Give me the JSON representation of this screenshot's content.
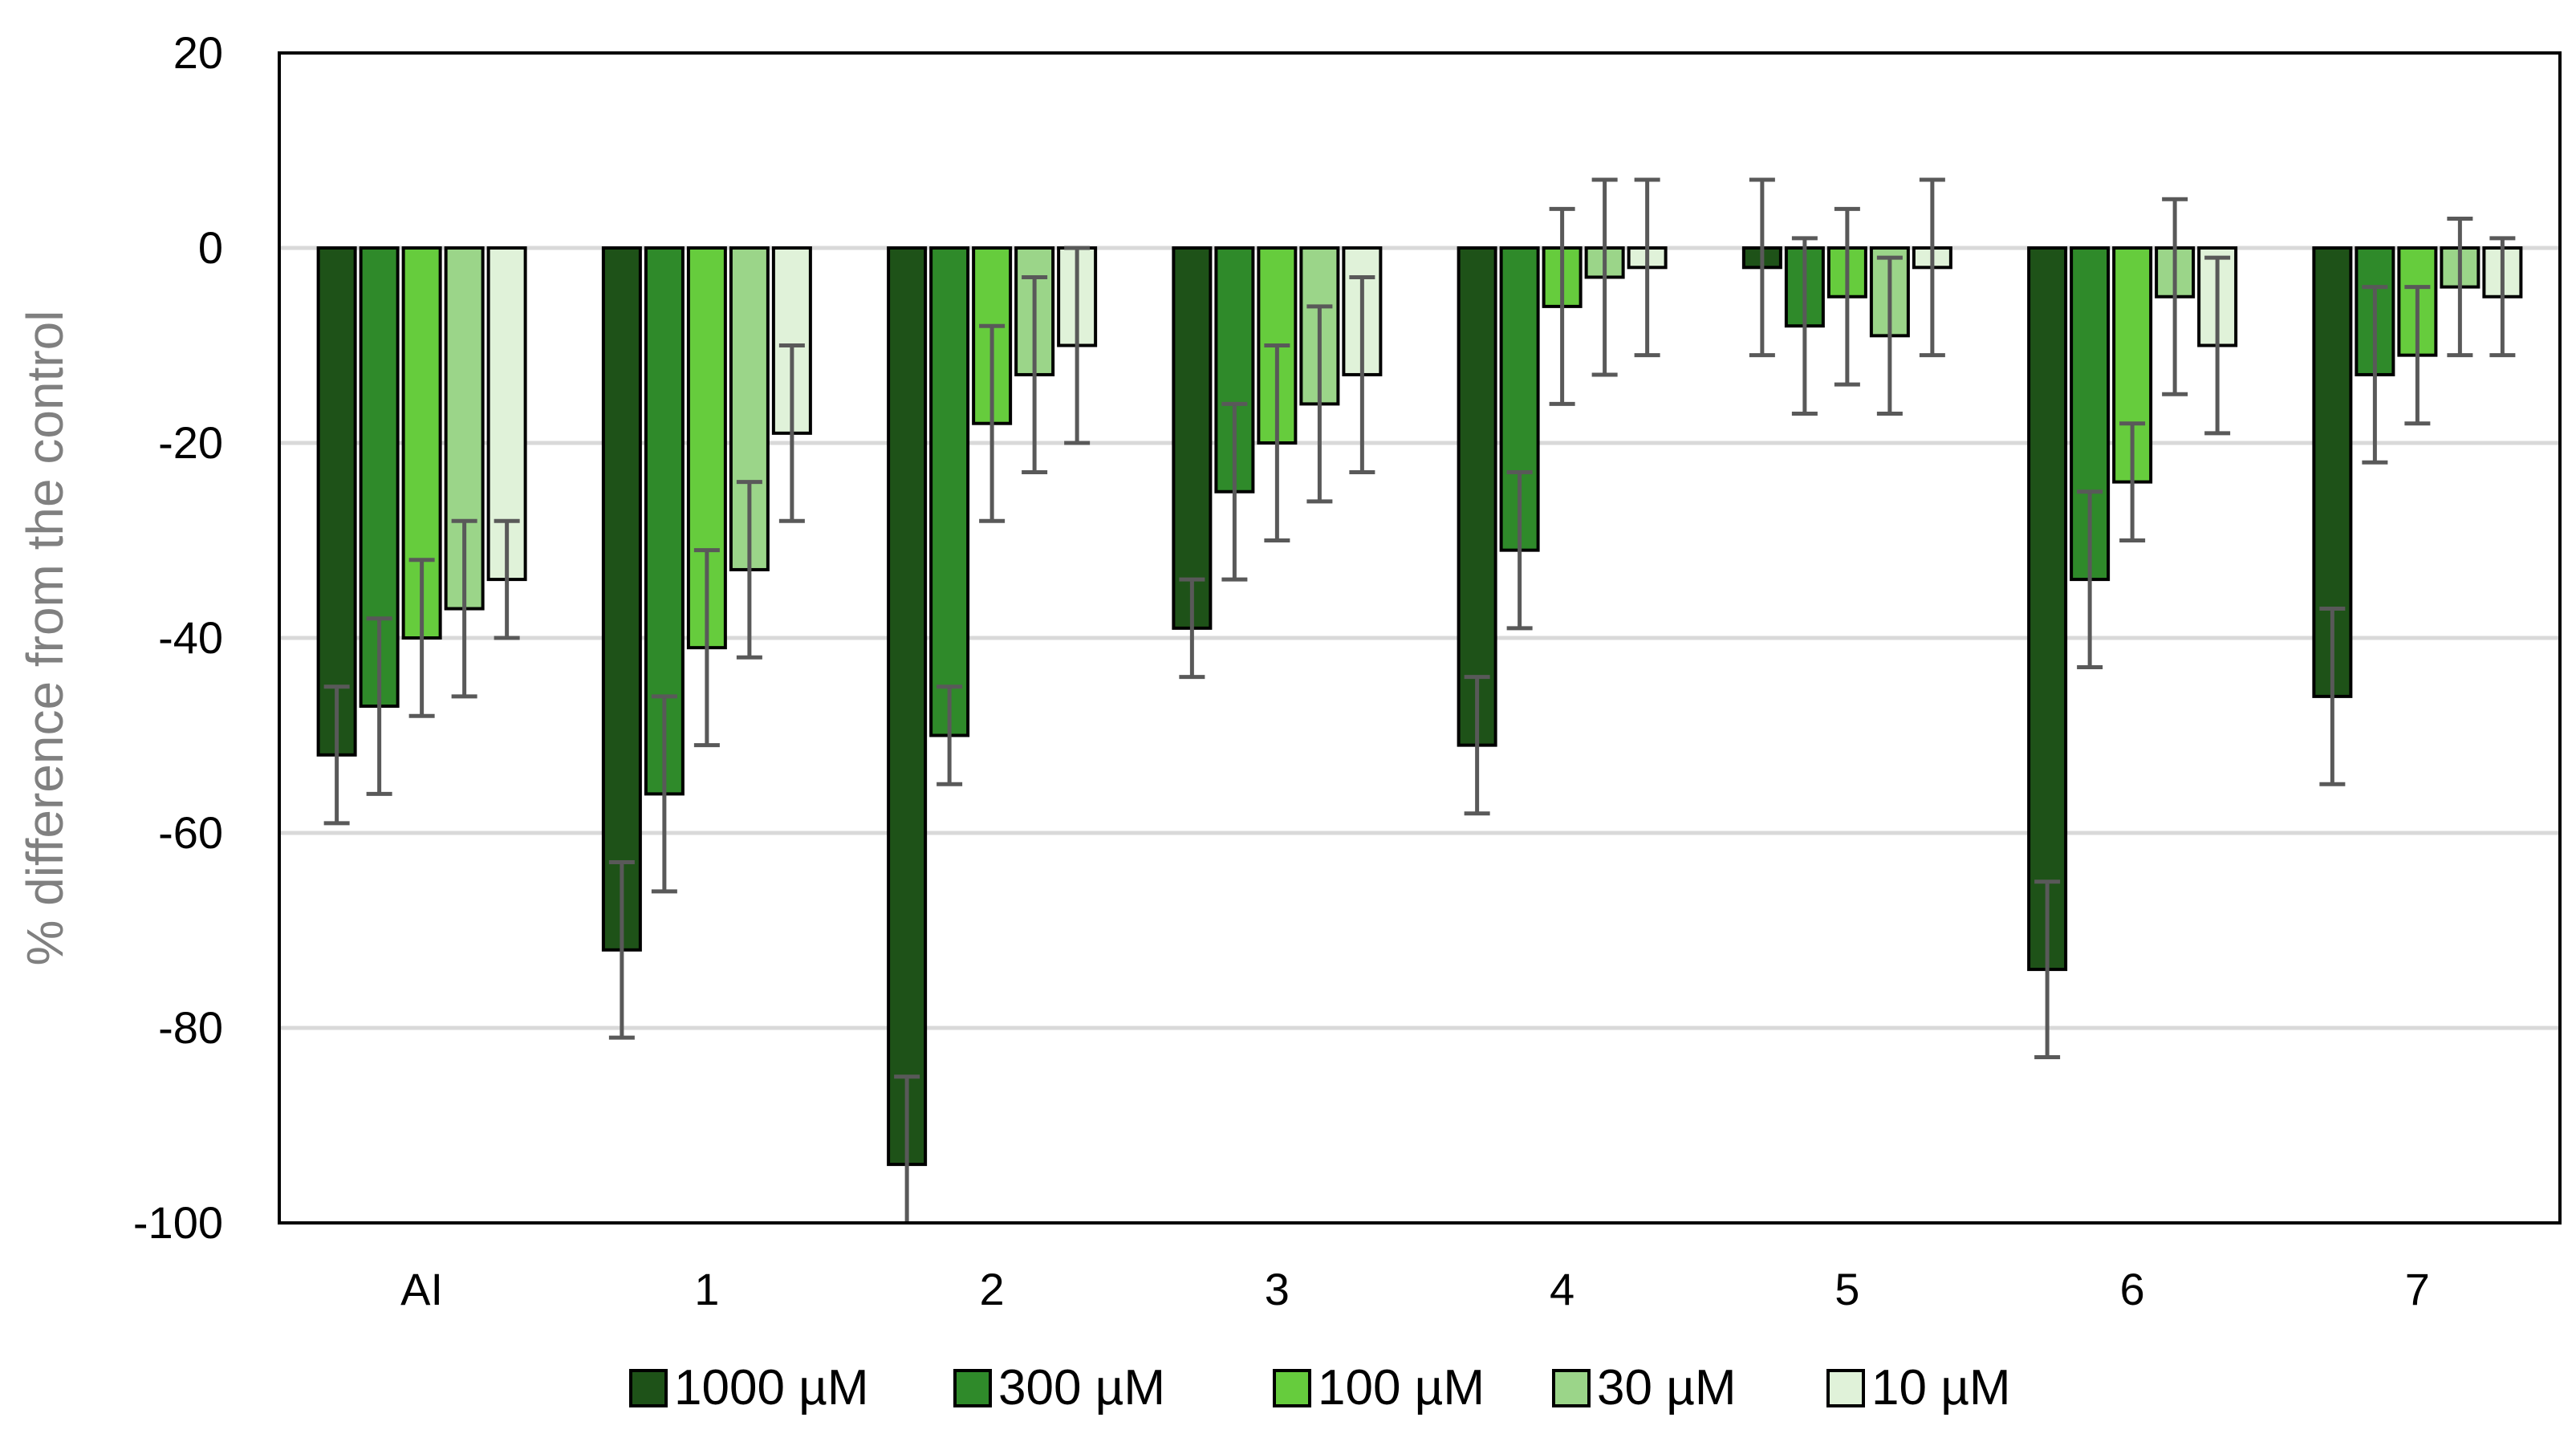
{
  "chart_data": {
    "type": "bar",
    "title": "",
    "xlabel": "",
    "ylabel": "% difference from the control",
    "ylim": [
      -100,
      20
    ],
    "yticks": [
      20,
      0,
      -20,
      -40,
      -60,
      -80,
      -100
    ],
    "yticks_text": [
      "20",
      "0",
      "-20",
      "-40",
      "-60",
      "-80",
      "-100"
    ],
    "grid": true,
    "legend_position": "bottom",
    "error_bars": true,
    "categories": [
      "AI",
      "1",
      "2",
      "3",
      "4",
      "5",
      "6",
      "7"
    ],
    "series": [
      {
        "name": "1000 µM",
        "color": "#1e5218",
        "values": [
          -52,
          -72,
          -94,
          -39,
          -51,
          -2,
          -74,
          -46
        ],
        "errors": [
          7,
          9,
          9,
          5,
          7,
          9,
          9,
          9
        ]
      },
      {
        "name": "300 µM",
        "color": "#2f8a2a",
        "values": [
          -47,
          -56,
          -50,
          -25,
          -31,
          -8,
          -34,
          -13
        ],
        "errors": [
          9,
          10,
          5,
          9,
          8,
          9,
          9,
          9
        ]
      },
      {
        "name": "100 µM",
        "color": "#66cc3d",
        "values": [
          -40,
          -41,
          -18,
          -20,
          -6,
          -5,
          -24,
          -11
        ],
        "errors": [
          8,
          10,
          10,
          10,
          10,
          9,
          6,
          7
        ]
      },
      {
        "name": "30 µM",
        "color": "#9bd589",
        "values": [
          -37,
          -33,
          -13,
          -16,
          -3,
          -9,
          -5,
          -4
        ],
        "errors": [
          9,
          9,
          10,
          10,
          10,
          8,
          10,
          7
        ]
      },
      {
        "name": "10 µM",
        "color": "#e0f2d9",
        "values": [
          -34,
          -19,
          -10,
          -13,
          -2,
          -2,
          -10,
          -5
        ],
        "errors": [
          6,
          9,
          10,
          10,
          9,
          9,
          9,
          6
        ]
      }
    ],
    "colors": {
      "gridline": "#d9d9d9",
      "error_bar": "#595959",
      "bar_outline": "#000000",
      "axis_title": "#808080"
    }
  }
}
